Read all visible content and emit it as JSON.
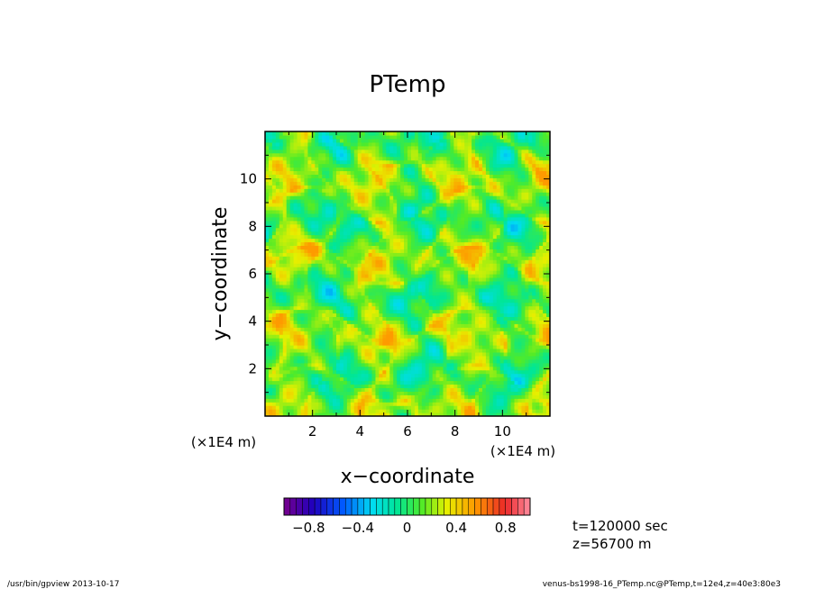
{
  "chart_data": {
    "type": "heatmap",
    "title": "PTemp",
    "xlabel": "x−coordinate",
    "ylabel": "y−coordinate",
    "xunit": "(×1E4 m)",
    "yunit": "(×1E4 m)",
    "xlim": [
      0,
      12
    ],
    "ylim": [
      0,
      12
    ],
    "xticks": [
      "2",
      "4",
      "6",
      "8",
      "10"
    ],
    "yticks": [
      "2",
      "4",
      "6",
      "8",
      "10"
    ],
    "xtick_values": [
      2,
      4,
      6,
      8,
      10
    ],
    "ytick_values": [
      2,
      4,
      6,
      8,
      10
    ],
    "colorbar": {
      "min": -1.0,
      "max": 1.0,
      "levels": 40,
      "ticks": [
        "−0.8",
        "−0.4",
        "0",
        "0.4",
        "0.8"
      ],
      "tick_values": [
        -0.8,
        -0.4,
        0,
        0.4,
        0.8
      ]
    },
    "field_summary": "values mostly between about -0.3 and 0.4",
    "annotations": {
      "time": "t=120000 sec",
      "height": "z=56700 m"
    }
  },
  "footer": {
    "left": "/usr/bin/gpview   2013-10-17",
    "right": "venus-bs1998-16_PTemp.nc@PTemp,t=12e4,z=40e3:80e3"
  }
}
